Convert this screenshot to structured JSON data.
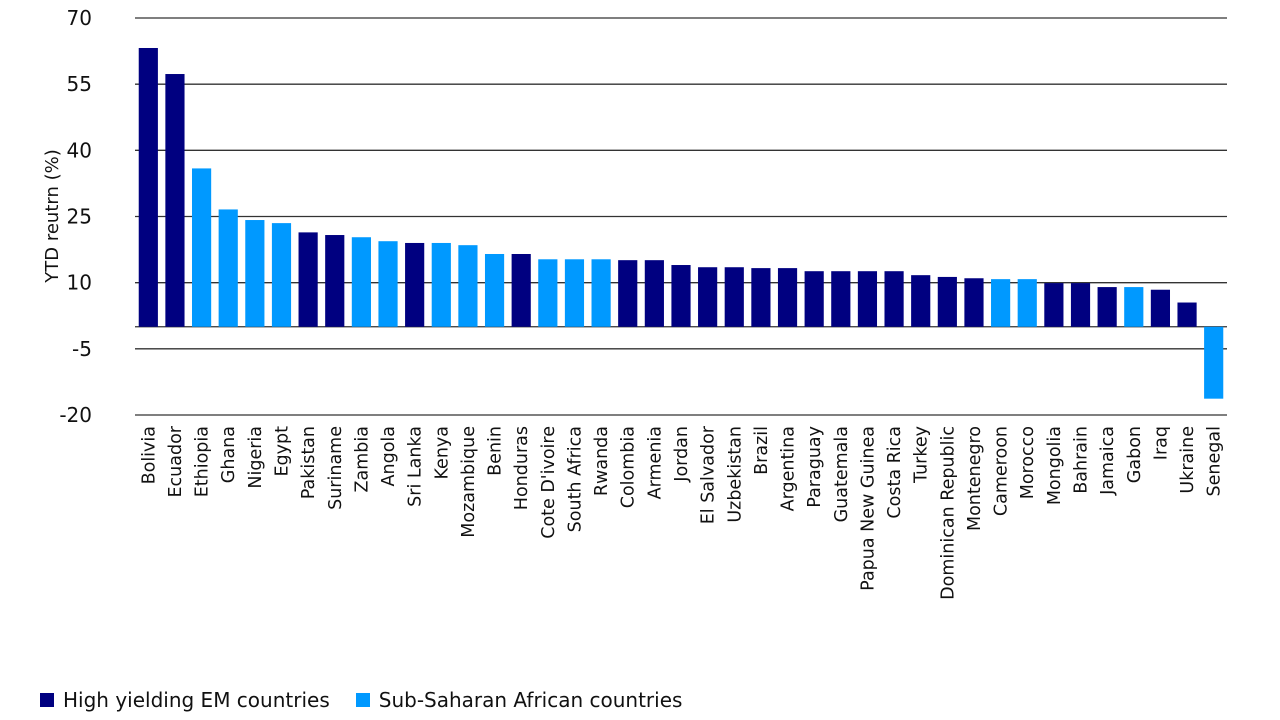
{
  "chart_data": {
    "type": "bar",
    "title": "",
    "xlabel": "",
    "ylabel": "YTD reutrn (%)",
    "ylim": [
      -20,
      70
    ],
    "yticks": [
      70,
      55,
      40,
      25,
      10,
      -5,
      -20
    ],
    "grid": true,
    "legend_placement": "bottom-left",
    "colors": {
      "High yielding EM countries": "#000080",
      "Sub-Saharan African countries": "#0099ff"
    },
    "categories": [
      "Bolivia",
      "Ecuador",
      "Ethiopia",
      "Ghana",
      "Nigeria",
      "Egypt",
      "Pakistan",
      "Suriname",
      "Zambia",
      "Angola",
      "Sri Lanka",
      "Kenya",
      "Mozambique",
      "Benin",
      "Honduras",
      "Cote D'ivoire",
      "South Africa",
      "Rwanda",
      "Colombia",
      "Armenia",
      "Jordan",
      "El Salvador",
      "Uzbekistan",
      "Brazil",
      "Argentina",
      "Paraguay",
      "Guatemala",
      "Papua New Guinea",
      "Costa Rica",
      "Turkey",
      "Dominican Republic",
      "Montenegro",
      "Cameroon",
      "Morocco",
      "Mongolia",
      "Bahrain",
      "Jamaica",
      "Gabon",
      "Iraq",
      "Ukraine",
      "Senegal"
    ],
    "values": [
      63.2,
      57.3,
      35.9,
      26.6,
      24.2,
      23.5,
      21.4,
      20.8,
      20.3,
      19.4,
      19.0,
      19.0,
      18.5,
      16.5,
      16.5,
      15.3,
      15.3,
      15.3,
      15.1,
      15.1,
      14.0,
      13.5,
      13.5,
      13.3,
      13.3,
      12.6,
      12.6,
      12.6,
      12.6,
      11.7,
      11.3,
      11.0,
      10.8,
      10.8,
      9.9,
      9.9,
      9.0,
      9.0,
      8.4,
      5.5,
      -16.3
    ],
    "groups": [
      "High yielding EM countries",
      "High yielding EM countries",
      "Sub-Saharan African countries",
      "Sub-Saharan African countries",
      "Sub-Saharan African countries",
      "Sub-Saharan African countries",
      "High yielding EM countries",
      "High yielding EM countries",
      "Sub-Saharan African countries",
      "Sub-Saharan African countries",
      "High yielding EM countries",
      "Sub-Saharan African countries",
      "Sub-Saharan African countries",
      "Sub-Saharan African countries",
      "High yielding EM countries",
      "Sub-Saharan African countries",
      "Sub-Saharan African countries",
      "Sub-Saharan African countries",
      "High yielding EM countries",
      "High yielding EM countries",
      "High yielding EM countries",
      "High yielding EM countries",
      "High yielding EM countries",
      "High yielding EM countries",
      "High yielding EM countries",
      "High yielding EM countries",
      "High yielding EM countries",
      "High yielding EM countries",
      "High yielding EM countries",
      "High yielding EM countries",
      "High yielding EM countries",
      "High yielding EM countries",
      "Sub-Saharan African countries",
      "Sub-Saharan African countries",
      "High yielding EM countries",
      "High yielding EM countries",
      "High yielding EM countries",
      "Sub-Saharan African countries",
      "High yielding EM countries",
      "High yielding EM countries",
      "Sub-Saharan African countries"
    ],
    "legend": [
      "High yielding EM countries",
      "Sub-Saharan African countries"
    ]
  }
}
